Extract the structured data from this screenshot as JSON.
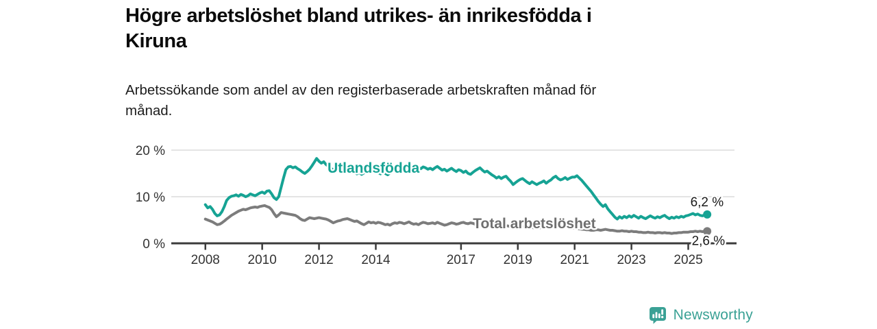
{
  "header": {
    "title_lines": [
      "Högre arbetslöshet bland utrikes- än inrikesfödda i",
      "Kiruna"
    ],
    "subtitle_lines": [
      "Arbetssökande som andel av den registerbaserade arbetskraften månad för",
      "månad."
    ]
  },
  "footer": {
    "brand": "Newsworthy",
    "brand_color": "#3aa195",
    "logo_icon": "bar-chart-speech-bubble-icon"
  },
  "chart_data": {
    "type": "line",
    "title": "Högre arbetslöshet bland utrikes- än inrikesfödda i Kiruna",
    "subtitle": "Arbetssökande som andel av den registerbaserade arbetskraften månad för månad.",
    "x_unit": "year, monthly resolution",
    "x_start": 2008.0,
    "x_step": 0.08333333,
    "xlim": [
      2006.8,
      2026.7
    ],
    "ylim": [
      0,
      20
    ],
    "grid": "horizontal-light",
    "axis_color": "#3b3b3b",
    "grid_color": "#dcdcdc",
    "tick_label_color": "#333333",
    "x_ticks": [
      2008,
      2010,
      2012,
      2014,
      2017,
      2019,
      2021,
      2023,
      2025
    ],
    "y_ticks": [
      {
        "value": 0,
        "label": "0 %"
      },
      {
        "value": 10,
        "label": "10 %"
      },
      {
        "value": 20,
        "label": "20 %"
      }
    ],
    "series": [
      {
        "name": "Utlandsfödda",
        "color": "#16a394",
        "end_label": "6,2 %",
        "label_pos": {
          "x": 2012.3,
          "y": 15.15
        },
        "values": [
          8.3,
          7.6,
          7.9,
          7.3,
          6.4,
          5.9,
          6.1,
          6.8,
          7.9,
          9.2,
          9.8,
          10.1,
          10.2,
          10.4,
          10.1,
          10.5,
          10.3,
          10.0,
          10.2,
          10.6,
          10.4,
          10.2,
          10.5,
          10.8,
          11.0,
          10.7,
          11.2,
          11.3,
          10.6,
          9.8,
          9.4,
          10.0,
          12.0,
          14.0,
          15.8,
          16.4,
          16.5,
          16.2,
          16.4,
          16.0,
          15.7,
          15.3,
          15.0,
          15.4,
          15.9,
          16.6,
          17.4,
          18.2,
          17.6,
          17.2,
          17.5,
          16.9,
          16.5,
          16.1,
          15.8,
          16.2,
          15.9,
          16.3,
          15.8,
          15.5,
          15.8,
          16.1,
          15.7,
          15.3,
          14.9,
          15.2,
          14.8,
          15.1,
          15.5,
          15.9,
          15.6,
          15.3,
          15.6,
          15.2,
          14.9,
          15.3,
          15.0,
          14.7,
          15.1,
          15.4,
          15.8,
          16.1,
          15.9,
          16.3,
          16.0,
          16.4,
          16.1,
          15.8,
          16.2,
          16.5,
          16.3,
          16.0,
          16.4,
          16.2,
          15.9,
          16.1,
          15.8,
          16.2,
          16.5,
          16.1,
          15.7,
          15.9,
          15.5,
          15.8,
          16.1,
          15.7,
          15.4,
          15.8,
          15.6,
          15.2,
          15.5,
          15.0,
          14.8,
          15.2,
          15.6,
          15.9,
          16.2,
          15.7,
          15.3,
          15.5,
          15.1,
          14.7,
          14.4,
          14.0,
          14.3,
          13.9,
          14.2,
          14.4,
          13.8,
          13.3,
          12.6,
          13.0,
          13.4,
          13.7,
          13.9,
          13.5,
          13.1,
          12.8,
          13.2,
          12.9,
          12.6,
          12.9,
          13.1,
          13.4,
          12.9,
          13.3,
          13.6,
          14.1,
          14.4,
          13.9,
          13.6,
          13.8,
          14.1,
          13.7,
          14.0,
          14.2,
          14.2,
          14.5,
          14.0,
          13.5,
          12.9,
          12.3,
          11.7,
          11.1,
          10.4,
          9.7,
          9.0,
          8.4,
          7.9,
          8.3,
          7.4,
          6.8,
          6.2,
          5.6,
          5.2,
          5.7,
          5.4,
          5.8,
          5.5,
          5.9,
          5.6,
          6.0,
          5.7,
          5.4,
          5.8,
          5.5,
          5.3,
          5.6,
          5.9,
          5.6,
          5.4,
          5.7,
          5.5,
          5.8,
          6.0,
          5.6,
          5.3,
          5.6,
          5.4,
          5.7,
          5.5,
          5.8,
          5.6,
          5.9,
          6.0,
          6.2,
          6.4,
          6.1,
          6.3,
          6.0,
          5.9,
          6.1,
          6.2
        ]
      },
      {
        "name": "Total arbetslöshet",
        "color": "#7c7c7c",
        "label_color": "#6f6f6f",
        "end_label": "2,6 %",
        "label_pos": {
          "x": 2017.42,
          "y": 3.24
        },
        "values": [
          5.2,
          5.0,
          4.8,
          4.6,
          4.3,
          4.0,
          4.1,
          4.4,
          4.8,
          5.2,
          5.6,
          6.0,
          6.3,
          6.6,
          6.9,
          7.1,
          7.3,
          7.2,
          7.4,
          7.6,
          7.7,
          7.8,
          7.7,
          7.9,
          8.0,
          8.1,
          7.9,
          7.7,
          7.2,
          6.4,
          5.7,
          6.1,
          6.6,
          6.5,
          6.4,
          6.3,
          6.2,
          6.1,
          6.0,
          5.7,
          5.3,
          5.0,
          4.9,
          5.2,
          5.5,
          5.4,
          5.3,
          5.4,
          5.5,
          5.4,
          5.3,
          5.2,
          5.0,
          4.7,
          4.4,
          4.6,
          4.8,
          4.9,
          5.1,
          5.2,
          5.3,
          5.1,
          4.9,
          4.7,
          4.8,
          4.5,
          4.2,
          4.0,
          4.3,
          4.6,
          4.4,
          4.5,
          4.3,
          4.5,
          4.4,
          4.2,
          4.0,
          4.1,
          3.9,
          4.2,
          4.4,
          4.3,
          4.5,
          4.4,
          4.2,
          4.4,
          4.6,
          4.3,
          4.1,
          4.2,
          4.0,
          4.3,
          4.5,
          4.4,
          4.2,
          4.3,
          4.4,
          4.2,
          4.5,
          4.3,
          4.1,
          3.9,
          4.0,
          4.2,
          4.4,
          4.3,
          4.1,
          4.2,
          4.4,
          4.5,
          4.3,
          4.2,
          4.4,
          4.3,
          4.1,
          4.2,
          4.3,
          4.2,
          4.1,
          4.2,
          4.1,
          4.0,
          3.9,
          3.8,
          3.9,
          3.8,
          3.7,
          3.8,
          3.7,
          3.6,
          3.7,
          3.6,
          3.6,
          3.5,
          3.6,
          3.5,
          3.4,
          3.5,
          3.4,
          3.3,
          3.4,
          3.3,
          3.4,
          3.3,
          3.4,
          3.5,
          3.7,
          3.9,
          4.0,
          3.9,
          3.8,
          3.7,
          3.6,
          3.5,
          3.4,
          3.3,
          3.3,
          3.2,
          3.1,
          3.0,
          3.0,
          2.9,
          2.9,
          2.8,
          2.8,
          2.9,
          2.9,
          2.8,
          2.9,
          3.0,
          2.9,
          2.8,
          2.8,
          2.7,
          2.6,
          2.6,
          2.7,
          2.6,
          2.6,
          2.5,
          2.6,
          2.5,
          2.5,
          2.4,
          2.4,
          2.3,
          2.3,
          2.4,
          2.3,
          2.3,
          2.2,
          2.3,
          2.3,
          2.2,
          2.3,
          2.2,
          2.2,
          2.1,
          2.2,
          2.2,
          2.3,
          2.3,
          2.4,
          2.4,
          2.4,
          2.5,
          2.5,
          2.6,
          2.5,
          2.6,
          2.5,
          2.6,
          2.6
        ]
      }
    ]
  }
}
